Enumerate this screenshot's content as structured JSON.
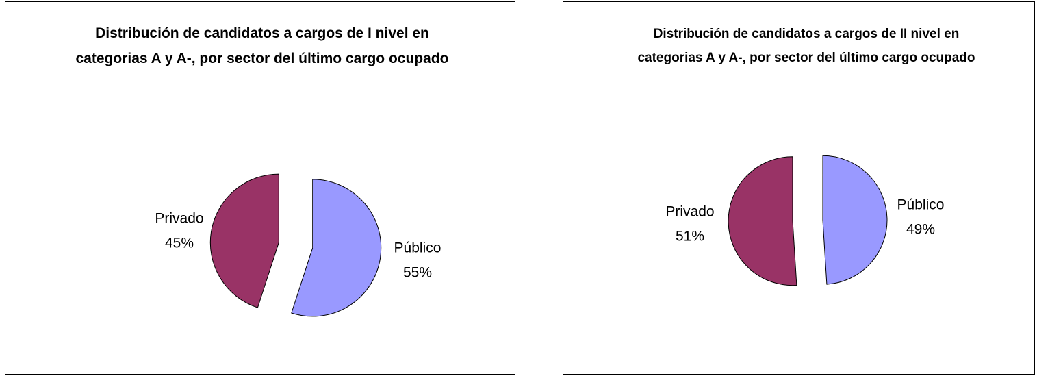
{
  "chart_data": [
    {
      "type": "pie",
      "title": "Distribución de candidatos a cargos de I nivel en categorias A y A-, por sector del último cargo ocupado",
      "categories": [
        "Público",
        "Privado"
      ],
      "values": [
        55,
        45
      ],
      "value_labels": [
        "55%",
        "45%"
      ],
      "colors": [
        "#9999ff",
        "#993366"
      ]
    },
    {
      "type": "pie",
      "title": "Distribución de candidatos a cargos de II nivel en categorias A y A-, por sector del último cargo ocupado",
      "categories": [
        "Público",
        "Privado"
      ],
      "values": [
        49,
        51
      ],
      "value_labels": [
        "49%",
        "51%"
      ],
      "colors": [
        "#9999ff",
        "#993366"
      ]
    }
  ]
}
